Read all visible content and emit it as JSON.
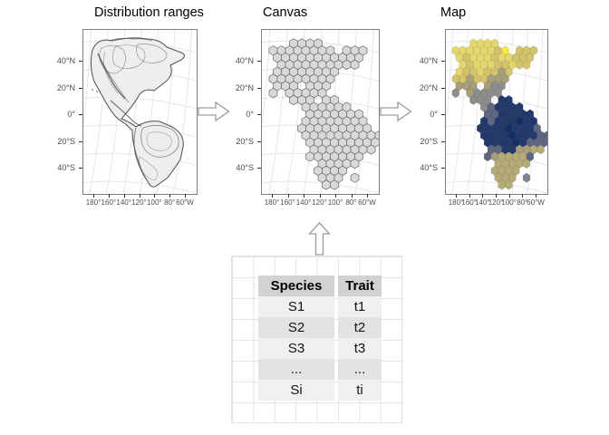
{
  "titles": {
    "panel1": "Distribution ranges",
    "panel2": "Canvas",
    "panel3": "Map"
  },
  "axis": {
    "y_ticks": [
      "40°N",
      "20°N",
      "0°",
      "20°S",
      "40°S"
    ],
    "x_ticks": [
      "180°",
      "160°",
      "140°",
      "120°",
      "100°",
      "80°",
      "60°W"
    ]
  },
  "table": {
    "headers": [
      "Species",
      "Trait"
    ],
    "rows": [
      [
        "S1",
        "t1"
      ],
      [
        "S2",
        "t2"
      ],
      [
        "S3",
        "t3"
      ],
      [
        "...",
        "..."
      ],
      [
        "Si",
        "ti"
      ]
    ]
  },
  "icons": {
    "flow_arrow_right": "hollow-right-arrow",
    "flow_arrow_up": "hollow-up-arrow"
  },
  "hexmap": {
    "rows": [
      "...1111.......",
      "11111120.222..",
      ".12111211222..",
      ".1211122122...",
      ".12212232.....",
      "22322333......",
      ".333.344......",
      "4.34444.......",
      "...444.66.....",
      "....456666....",
      ".....5566666..",
      "....65666766..",
      "....666676665.",
      "....6666766655",
      ".....666676555",
      ".....55663388.",
      ".....5388885..",
      "......88888...",
      "......8888....",
      "......888.9...",
      ".......88....."
    ],
    "palette": {
      "0": "#f9e843",
      "1": "#e6d66e",
      "2": "#d3c46b",
      "3": "#a79e7a",
      "4": "#8e8d8b",
      "5": "#5f6680",
      "6": "#22396a",
      "7": "#152f61",
      "8": "#b5ab77",
      "9": "#7d8293"
    },
    "canvas_fill": "#d9d9d9",
    "canvas_stroke": "#686868"
  },
  "colors": {
    "panel_border": "#7f7f7f",
    "graticule": "#e4e4e4",
    "axis_text": "#4d4d4d",
    "tick": "#333333",
    "arrow_stroke": "#9c9c9c",
    "arrow_fill": "#ffffff",
    "land_fill": "#eeeeee",
    "range_stroke": "#555555",
    "grid_line": "#e4e4e4",
    "table_header_bg": "#d2d2d2",
    "table_row_light": "#f0f0f0",
    "table_row_dark": "#e3e3e3"
  }
}
